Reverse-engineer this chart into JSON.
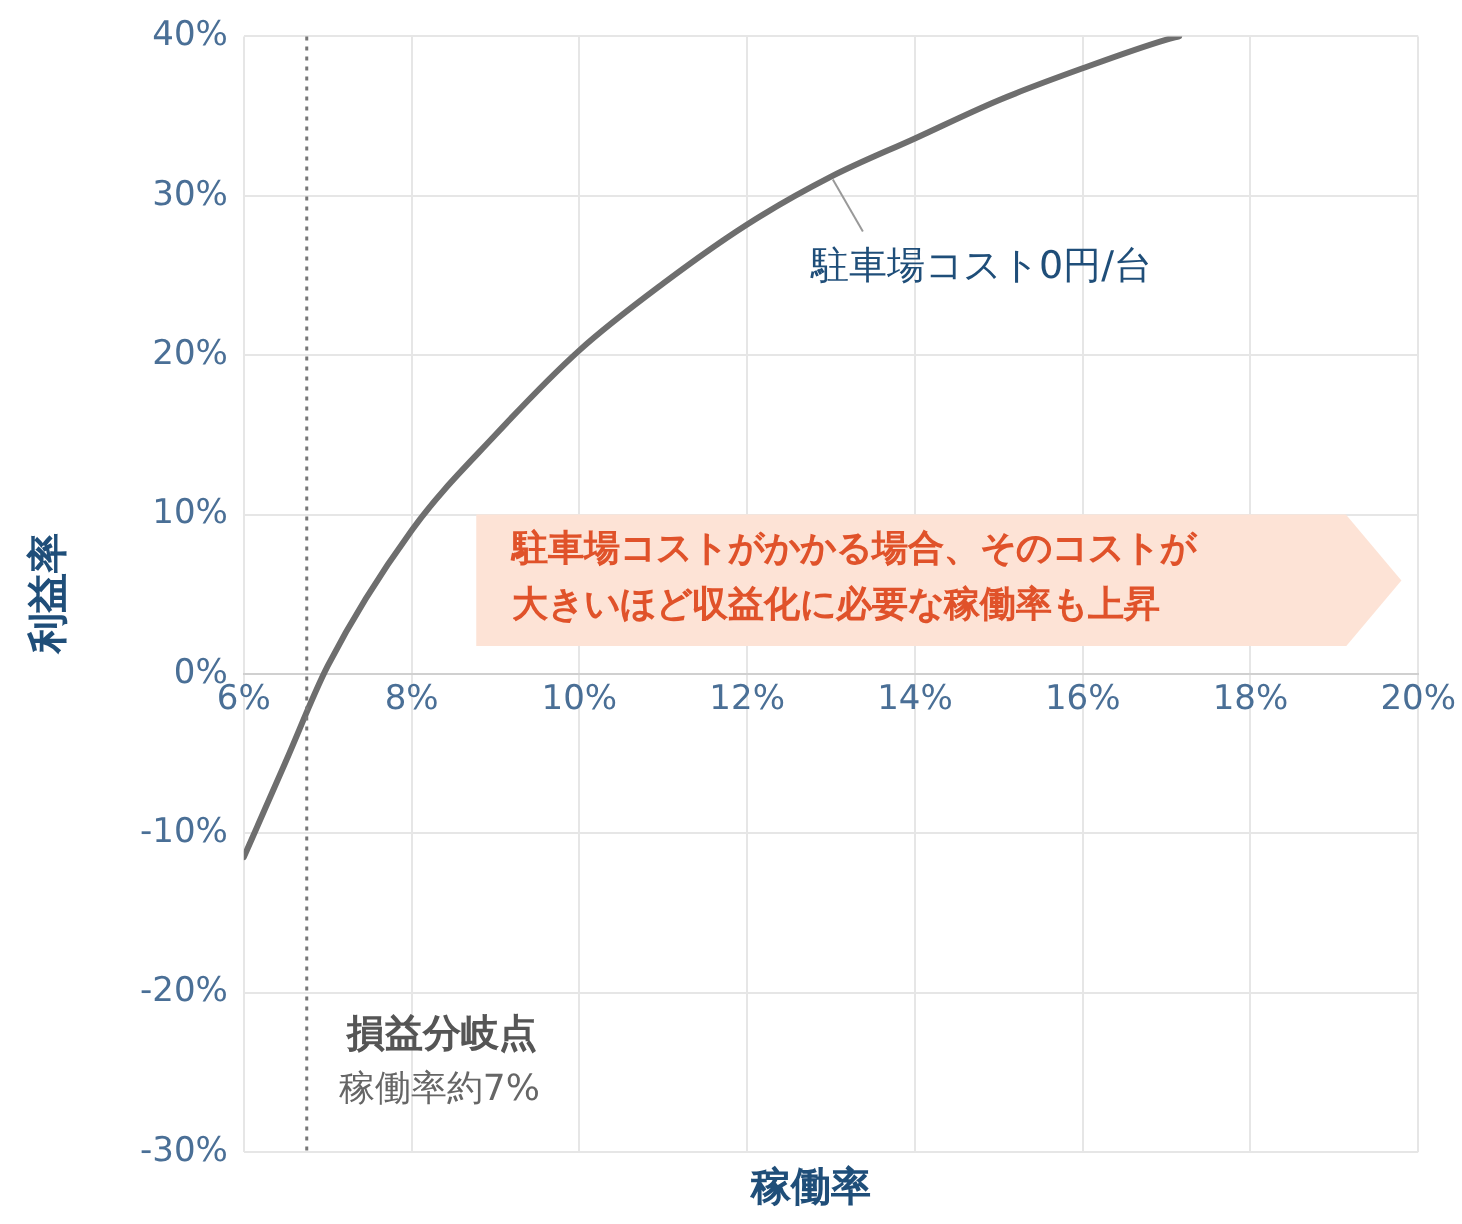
{
  "chart_data": {
    "type": "line",
    "xlabel": "稼働率",
    "ylabel": "利益率",
    "x": [
      6,
      6.5,
      7,
      8,
      9,
      10,
      11,
      12,
      13,
      14,
      15,
      16,
      17,
      17.15
    ],
    "series": [
      {
        "name": "駐車場コスト0円/台",
        "color": "#6e6e6e",
        "values": [
          -11.5,
          -5.5,
          0.5,
          9,
          15,
          20.3,
          24.5,
          28.2,
          31.2,
          33.6,
          36,
          38,
          39.8,
          40
        ]
      }
    ],
    "xlim": [
      6,
      20
    ],
    "xticks": [
      {
        "value": 6,
        "label": "6%"
      },
      {
        "value": 8,
        "label": "8%"
      },
      {
        "value": 10,
        "label": "10%"
      },
      {
        "value": 12,
        "label": "12%"
      },
      {
        "value": 14,
        "label": "14%"
      },
      {
        "value": 16,
        "label": "16%"
      },
      {
        "value": 18,
        "label": "18%"
      },
      {
        "value": 20,
        "label": "20%"
      }
    ],
    "ylim": [
      -30,
      40
    ],
    "yticks": [
      {
        "value": -30,
        "label": "-30%"
      },
      {
        "value": -20,
        "label": "-20%"
      },
      {
        "value": -10,
        "label": "-10%"
      },
      {
        "value": 0,
        "label": "0%"
      },
      {
        "value": 10,
        "label": "10%"
      },
      {
        "value": 20,
        "label": "20%"
      },
      {
        "value": 30,
        "label": "30%"
      },
      {
        "value": 40,
        "label": "40%"
      }
    ],
    "ref_lines": [
      {
        "axis": "x",
        "value": 6.75,
        "label": "損益分岐点",
        "line_style": "dotted",
        "color": "#777777"
      }
    ],
    "annotations": [
      "稼働率約7%",
      "駐車場コストがかかる場合、そのコストが大きいほど収益化に必要な稼働率も上昇"
    ],
    "grid": true,
    "legend": false,
    "marker": "none",
    "line_style": "solid"
  }
}
